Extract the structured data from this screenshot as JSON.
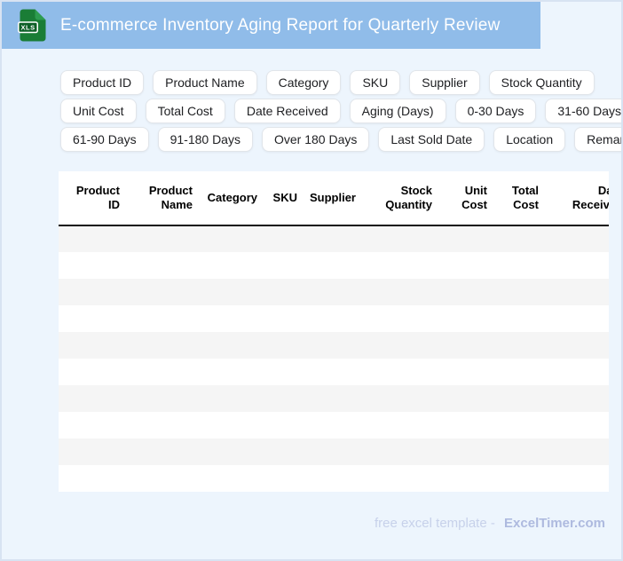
{
  "header": {
    "title": "E-commerce Inventory Aging Report for Quarterly Review",
    "file_badge": "XLS"
  },
  "field_chips": {
    "rows": [
      [
        "Product ID",
        "Product Name",
        "Category",
        "SKU",
        "Supplier",
        "Stock Quantity"
      ],
      [
        "Unit Cost",
        "Total Cost",
        "Date Received",
        "Aging (Days)",
        "0-30 Days",
        "31-60 Days"
      ],
      [
        "61-90 Days",
        "91-180 Days",
        "Over 180 Days",
        "Last Sold Date",
        "Location",
        "Remarks"
      ]
    ]
  },
  "table": {
    "columns": [
      "Product ID",
      "Product Name",
      "Category",
      "SKU",
      "Supplier",
      "Stock Quantity",
      "Unit Cost",
      "Total Cost",
      "Date Received"
    ],
    "empty_rows": 10
  },
  "footer": {
    "prefix": "free excel template -",
    "brand": "ExcelTimer.com"
  },
  "colors": {
    "header_bg": "#90bce9",
    "page_bg": "#edf5fd",
    "row_stripe": "#f5f5f5",
    "icon_green": "#1a7d36",
    "icon_green_dark": "#0d5f27",
    "footer_prefix": "#c7d1ea",
    "footer_brand": "#aebadf"
  }
}
